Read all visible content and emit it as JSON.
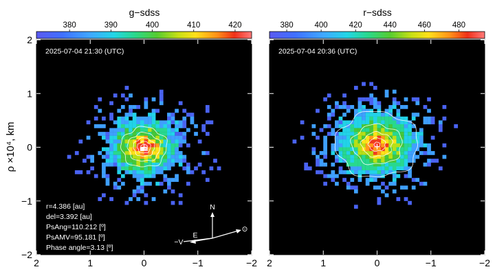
{
  "chart_data": [
    {
      "type": "heatmap",
      "title": "g−sdss",
      "colorbar_ticks": [
        "380",
        "390",
        "400",
        "410",
        "420"
      ],
      "colorbar_range": [
        372,
        424
      ],
      "ylabel": "ρ ×10⁴, km",
      "xlim": [
        2,
        -2
      ],
      "ylim": [
        -2,
        2
      ],
      "xticks": [
        "2",
        "1",
        "0",
        "−1",
        "−2"
      ],
      "yticks": [
        "2",
        "1",
        "0",
        "−1",
        "−2"
      ],
      "timestamp": "2025-07-04 21:30  (UTC)",
      "peak_level": 424,
      "background_level": 375,
      "contour_levels": [
        392,
        398,
        405,
        411,
        417
      ],
      "coma_center": [
        0.0,
        0.0
      ],
      "observing_geometry": [
        "r=4.386 [au]",
        "del=3.392 [au]",
        "PsAng=110.212 [º]",
        "PsAMV=95.181  [º]",
        "Phase angle=3.13 [º]"
      ],
      "compass": {
        "north": "N",
        "east": "E",
        "velocity": "−V",
        "sun_symbol": "⊙"
      }
    },
    {
      "type": "heatmap",
      "title": "r−sdss",
      "colorbar_ticks": [
        "380",
        "400",
        "420",
        "440",
        "460",
        "480"
      ],
      "colorbar_range": [
        370,
        495
      ],
      "xlim": [
        2,
        -2
      ],
      "ylim": [
        -2,
        2
      ],
      "xticks": [
        "2",
        "1",
        "0",
        "−1",
        "−2"
      ],
      "timestamp": "2025-07-04  20:36  (UTC)",
      "peak_level": 493,
      "background_level": 378,
      "contour_levels": [
        400,
        420,
        440,
        460,
        480
      ],
      "coma_center": [
        0.0,
        0.0
      ]
    }
  ],
  "colormap": [
    "#2b2bd6",
    "#4a63f2",
    "#3fa0ff",
    "#22d3e8",
    "#28d88f",
    "#45c83a",
    "#b8e018",
    "#ffe21a",
    "#ff9a1a",
    "#f03a1e",
    "#ff3b3b",
    "#ffc0c0",
    "#ffffff"
  ]
}
